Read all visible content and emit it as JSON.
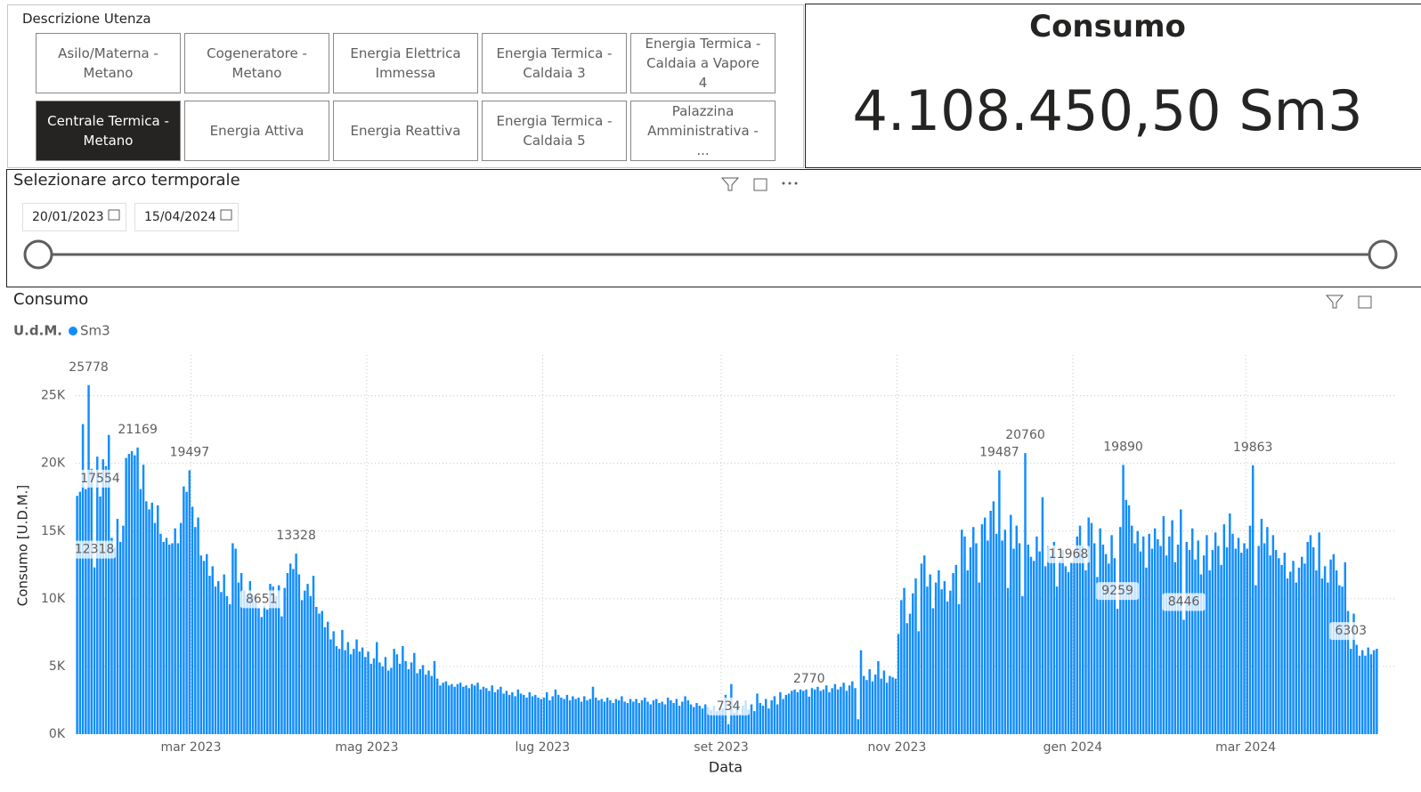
{
  "slicer": {
    "title": "Descrizione Utenza",
    "items": [
      {
        "label": "Asilo/Materna - Metano",
        "selected": false
      },
      {
        "label": "Cogeneratore - Metano",
        "selected": false
      },
      {
        "label": "Energia Elettrica Immessa",
        "selected": false
      },
      {
        "label": "Energia Termica - Caldaia 3",
        "selected": false
      },
      {
        "label": "Energia Termica - Caldaia a Vapore 4",
        "selected": false
      },
      {
        "label": "Centrale Termica - Metano",
        "selected": true
      },
      {
        "label": "Energia Attiva",
        "selected": false
      },
      {
        "label": "Energia Reattiva",
        "selected": false
      },
      {
        "label": "Energia Termica - Caldaia 5",
        "selected": false
      },
      {
        "label": "Palazzina Amministrativa - ...",
        "selected": false
      }
    ]
  },
  "card": {
    "title": "Consumo",
    "value": "4.108.450,50 Sm3"
  },
  "date_slicer": {
    "title": "Selezionare arco termporale",
    "from": "20/01/2023",
    "to": "15/04/2024"
  },
  "chart_data": {
    "type": "bar",
    "title": "Consumo",
    "legend_title": "U.d.M.",
    "xlabel": "Data",
    "ylabel": "Consumo [U.D.M.]",
    "grid": true,
    "xlim": [
      "2023-01-20",
      "2024-04-15"
    ],
    "xticks": [
      {
        "value": "2023-03-01",
        "label": "mar 2023"
      },
      {
        "value": "2023-05-01",
        "label": "mag 2023"
      },
      {
        "value": "2023-07-01",
        "label": "lug 2023"
      },
      {
        "value": "2023-09-01",
        "label": "set 2023"
      },
      {
        "value": "2023-11-01",
        "label": "nov 2023"
      },
      {
        "value": "2024-01-01",
        "label": "gen 2024"
      },
      {
        "value": "2024-03-01",
        "label": "mar 2024"
      }
    ],
    "ylim": [
      0,
      28000
    ],
    "yticks": [
      {
        "value": 0,
        "label": "0K"
      },
      {
        "value": 5000,
        "label": "5K"
      },
      {
        "value": 10000,
        "label": "10K"
      },
      {
        "value": 15000,
        "label": "15K"
      },
      {
        "value": 20000,
        "label": "20K"
      },
      {
        "value": 25000,
        "label": "25K"
      }
    ],
    "x": [
      "2023-01-20",
      "2023-01-21",
      "2023-01-22",
      "2023-01-23",
      "2023-01-24",
      "2023-01-25",
      "2023-01-26",
      "2023-01-27",
      "2023-01-28",
      "2023-01-29",
      "2023-01-30",
      "2023-01-31",
      "2023-02-01",
      "2023-02-02",
      "2023-02-03",
      "2023-02-04",
      "2023-02-05",
      "2023-02-06",
      "2023-02-07",
      "2023-02-08",
      "2023-02-09",
      "2023-02-10",
      "2023-02-11",
      "2023-02-12",
      "2023-02-13",
      "2023-02-14",
      "2023-02-15",
      "2023-02-16",
      "2023-02-17",
      "2023-02-18",
      "2023-02-19",
      "2023-02-20",
      "2023-02-21",
      "2023-02-22",
      "2023-02-23",
      "2023-02-24",
      "2023-02-25",
      "2023-02-26",
      "2023-02-27",
      "2023-02-28",
      "2023-03-01",
      "2023-03-02",
      "2023-03-03",
      "2023-03-04",
      "2023-03-05",
      "2023-03-06",
      "2023-03-07",
      "2023-03-08",
      "2023-03-09",
      "2023-03-10",
      "2023-03-11",
      "2023-03-12",
      "2023-03-13",
      "2023-03-14",
      "2023-03-15",
      "2023-03-16",
      "2023-03-17",
      "2023-03-18",
      "2023-03-19",
      "2023-03-20",
      "2023-03-21",
      "2023-03-22",
      "2023-03-23",
      "2023-03-24",
      "2023-03-25",
      "2023-03-26",
      "2023-03-27",
      "2023-03-28",
      "2023-03-29",
      "2023-03-30",
      "2023-03-31",
      "2023-04-01",
      "2023-04-02",
      "2023-04-03",
      "2023-04-04",
      "2023-04-05",
      "2023-04-06",
      "2023-04-07",
      "2023-04-08",
      "2023-04-09",
      "2023-04-10",
      "2023-04-11",
      "2023-04-12",
      "2023-04-13",
      "2023-04-14",
      "2023-04-15",
      "2023-04-16",
      "2023-04-17",
      "2023-04-18",
      "2023-04-19",
      "2023-04-20",
      "2023-04-21",
      "2023-04-22",
      "2023-04-23",
      "2023-04-24",
      "2023-04-25",
      "2023-04-26",
      "2023-04-27",
      "2023-04-28",
      "2023-04-29",
      "2023-04-30",
      "2023-05-01",
      "2023-05-02",
      "2023-05-03",
      "2023-05-04",
      "2023-05-05",
      "2023-05-06",
      "2023-05-07",
      "2023-05-08",
      "2023-05-09",
      "2023-05-10",
      "2023-05-11",
      "2023-05-12",
      "2023-05-13",
      "2023-05-14",
      "2023-05-15",
      "2023-05-16",
      "2023-05-17",
      "2023-05-18",
      "2023-05-19",
      "2023-05-20",
      "2023-05-21",
      "2023-05-22",
      "2023-05-23",
      "2023-05-24",
      "2023-05-25",
      "2023-05-26",
      "2023-05-27",
      "2023-05-28",
      "2023-05-29",
      "2023-05-30",
      "2023-05-31",
      "2023-06-01",
      "2023-06-02",
      "2023-06-03",
      "2023-06-04",
      "2023-06-05",
      "2023-06-06",
      "2023-06-07",
      "2023-06-08",
      "2023-06-09",
      "2023-06-10",
      "2023-06-11",
      "2023-06-12",
      "2023-06-13",
      "2023-06-14",
      "2023-06-15",
      "2023-06-16",
      "2023-06-17",
      "2023-06-18",
      "2023-06-19",
      "2023-06-20",
      "2023-06-21",
      "2023-06-22",
      "2023-06-23",
      "2023-06-24",
      "2023-06-25",
      "2023-06-26",
      "2023-06-27",
      "2023-06-28",
      "2023-06-29",
      "2023-06-30",
      "2023-07-01",
      "2023-07-02",
      "2023-07-03",
      "2023-07-04",
      "2023-07-05",
      "2023-07-06",
      "2023-07-07",
      "2023-07-08",
      "2023-07-09",
      "2023-07-10",
      "2023-07-11",
      "2023-07-12",
      "2023-07-13",
      "2023-07-14",
      "2023-07-15",
      "2023-07-16",
      "2023-07-17",
      "2023-07-18",
      "2023-07-19",
      "2023-07-20",
      "2023-07-21",
      "2023-07-22",
      "2023-07-23",
      "2023-07-24",
      "2023-07-25",
      "2023-07-26",
      "2023-07-27",
      "2023-07-28",
      "2023-07-29",
      "2023-07-30",
      "2023-07-31",
      "2023-08-01",
      "2023-08-02",
      "2023-08-03",
      "2023-08-04",
      "2023-08-05",
      "2023-08-06",
      "2023-08-07",
      "2023-08-08",
      "2023-08-09",
      "2023-08-10",
      "2023-08-11",
      "2023-08-12",
      "2023-08-13",
      "2023-08-14",
      "2023-08-15",
      "2023-08-16",
      "2023-08-17",
      "2023-08-18",
      "2023-08-19",
      "2023-08-20",
      "2023-08-21",
      "2023-08-22",
      "2023-08-23",
      "2023-08-24",
      "2023-08-25",
      "2023-08-26",
      "2023-08-27",
      "2023-08-28",
      "2023-08-29",
      "2023-08-30",
      "2023-08-31",
      "2023-09-01",
      "2023-09-02",
      "2023-09-03",
      "2023-09-04",
      "2023-09-05",
      "2023-09-06",
      "2023-09-07",
      "2023-09-08",
      "2023-09-09",
      "2023-09-10",
      "2023-09-11",
      "2023-09-12",
      "2023-09-13",
      "2023-09-14",
      "2023-09-15",
      "2023-09-16",
      "2023-09-17",
      "2023-09-18",
      "2023-09-19",
      "2023-09-20",
      "2023-09-21",
      "2023-09-22",
      "2023-09-23",
      "2023-09-24",
      "2023-09-25",
      "2023-09-26",
      "2023-09-27",
      "2023-09-28",
      "2023-09-29",
      "2023-09-30",
      "2023-10-01",
      "2023-10-02",
      "2023-10-03",
      "2023-10-04",
      "2023-10-05",
      "2023-10-06",
      "2023-10-07",
      "2023-10-08",
      "2023-10-09",
      "2023-10-10",
      "2023-10-11",
      "2023-10-12",
      "2023-10-13",
      "2023-10-14",
      "2023-10-15",
      "2023-10-16",
      "2023-10-17",
      "2023-10-18",
      "2023-10-19",
      "2023-10-20",
      "2023-10-21",
      "2023-10-22",
      "2023-10-23",
      "2023-10-24",
      "2023-10-25",
      "2023-10-26",
      "2023-10-27",
      "2023-10-28",
      "2023-10-29",
      "2023-10-30",
      "2023-10-31",
      "2023-11-01",
      "2023-11-02",
      "2023-11-03",
      "2023-11-04",
      "2023-11-05",
      "2023-11-06",
      "2023-11-07",
      "2023-11-08",
      "2023-11-09",
      "2023-11-10",
      "2023-11-11",
      "2023-11-12",
      "2023-11-13",
      "2023-11-14",
      "2023-11-15",
      "2023-11-16",
      "2023-11-17",
      "2023-11-18",
      "2023-11-19",
      "2023-11-20",
      "2023-11-21",
      "2023-11-22",
      "2023-11-23",
      "2023-11-24",
      "2023-11-25",
      "2023-11-26",
      "2023-11-27",
      "2023-11-28",
      "2023-11-29",
      "2023-11-30",
      "2023-12-01",
      "2023-12-02",
      "2023-12-03",
      "2023-12-04",
      "2023-12-05",
      "2023-12-06",
      "2023-12-07",
      "2023-12-08",
      "2023-12-09",
      "2023-12-10",
      "2023-12-11",
      "2023-12-12",
      "2023-12-13",
      "2023-12-14",
      "2023-12-15",
      "2023-12-16",
      "2023-12-17",
      "2023-12-18",
      "2023-12-19",
      "2023-12-20",
      "2023-12-21",
      "2023-12-22",
      "2023-12-23",
      "2023-12-24",
      "2023-12-25",
      "2023-12-26",
      "2023-12-27",
      "2023-12-28",
      "2023-12-29",
      "2023-12-30",
      "2023-12-31",
      "2024-01-01",
      "2024-01-02",
      "2024-01-03",
      "2024-01-04",
      "2024-01-05",
      "2024-01-06",
      "2024-01-07",
      "2024-01-08",
      "2024-01-09",
      "2024-01-10",
      "2024-01-11",
      "2024-01-12",
      "2024-01-13",
      "2024-01-14",
      "2024-01-15",
      "2024-01-16",
      "2024-01-17",
      "2024-01-18",
      "2024-01-19",
      "2024-01-20",
      "2024-01-21",
      "2024-01-22",
      "2024-01-23",
      "2024-01-24",
      "2024-01-25",
      "2024-01-26",
      "2024-01-27",
      "2024-01-28",
      "2024-01-29",
      "2024-01-30",
      "2024-01-31",
      "2024-02-01",
      "2024-02-02",
      "2024-02-03",
      "2024-02-04",
      "2024-02-05",
      "2024-02-06",
      "2024-02-07",
      "2024-02-08",
      "2024-02-09",
      "2024-02-10",
      "2024-02-11",
      "2024-02-12",
      "2024-02-13",
      "2024-02-14",
      "2024-02-15",
      "2024-02-16",
      "2024-02-17",
      "2024-02-18",
      "2024-02-19",
      "2024-02-20",
      "2024-02-21",
      "2024-02-22",
      "2024-02-23",
      "2024-02-24",
      "2024-02-25",
      "2024-02-26",
      "2024-02-27",
      "2024-02-28",
      "2024-02-29",
      "2024-03-01",
      "2024-03-02",
      "2024-03-03",
      "2024-03-04",
      "2024-03-05",
      "2024-03-06",
      "2024-03-07",
      "2024-03-08",
      "2024-03-09",
      "2024-03-10",
      "2024-03-11",
      "2024-03-12",
      "2024-03-13",
      "2024-03-14",
      "2024-03-15",
      "2024-03-16",
      "2024-03-17",
      "2024-03-18",
      "2024-03-19",
      "2024-03-20",
      "2024-03-21",
      "2024-03-22",
      "2024-03-23",
      "2024-03-24",
      "2024-03-25",
      "2024-03-26",
      "2024-03-27",
      "2024-03-28",
      "2024-03-29",
      "2024-03-30",
      "2024-03-31",
      "2024-04-01",
      "2024-04-02",
      "2024-04-03",
      "2024-04-04",
      "2024-04-05",
      "2024-04-06",
      "2024-04-07",
      "2024-04-08",
      "2024-04-09",
      "2024-04-10",
      "2024-04-11",
      "2024-04-12",
      "2024-04-13",
      "2024-04-14",
      "2024-04-15"
    ],
    "series": [
      {
        "name": "Sm3",
        "color": "#118dff",
        "values": [
          17600,
          17900,
          22900,
          18100,
          25778,
          19600,
          12318,
          20500,
          17554,
          20300,
          19800,
          22100,
          14500,
          13800,
          15900,
          14200,
          15400,
          20400,
          20700,
          20900,
          20600,
          21169,
          18100,
          19900,
          17200,
          16600,
          17100,
          15600,
          16900,
          14800,
          14200,
          14500,
          14000,
          14100,
          15200,
          14100,
          15600,
          18300,
          17900,
          19497,
          16800,
          15300,
          16000,
          13200,
          12800,
          13300,
          11700,
          12400,
          10900,
          11300,
          10500,
          11800,
          10200,
          9600,
          14100,
          13700,
          11200,
          11900,
          10600,
          10100,
          11300,
          10200,
          9800,
          9300,
          8651,
          9500,
          9200,
          11100,
          10900,
          10200,
          11000,
          8700,
          10800,
          11900,
          12600,
          12200,
          13328,
          11800,
          9900,
          10600,
          11100,
          10200,
          11700,
          9400,
          8900,
          9100,
          7900,
          8300,
          7000,
          7600,
          6500,
          6300,
          7700,
          6200,
          6800,
          5900,
          6300,
          7000,
          6100,
          6400,
          5700,
          6100,
          5200,
          5600,
          6800,
          5300,
          5000,
          5700,
          4700,
          4900,
          6300,
          5900,
          5200,
          6500,
          5400,
          4800,
          5300,
          6000,
          4500,
          4800,
          5100,
          4400,
          4700,
          4300,
          5400,
          4100,
          3600,
          3800,
          3900,
          3600,
          3700,
          3500,
          3700,
          3800,
          3500,
          3600,
          3400,
          3700,
          3600,
          3800,
          3300,
          3500,
          3400,
          3200,
          3600,
          3100,
          3300,
          3500,
          3000,
          3200,
          2900,
          3100,
          2800,
          3300,
          3000,
          2900,
          2700,
          3100,
          2800,
          2900,
          2700,
          2600,
          2700,
          3100,
          2500,
          2800,
          3300,
          2900,
          2700,
          2600,
          2900,
          2500,
          2800,
          2600,
          2700,
          2400,
          2800,
          2500,
          2600,
          3500,
          2700,
          2500,
          2600,
          2400,
          2700,
          2500,
          2300,
          2600,
          2500,
          2800,
          2400,
          2300,
          2600,
          2400,
          2600,
          2300,
          2500,
          2700,
          2400,
          2200,
          2500,
          2600,
          2300,
          2400,
          2200,
          2700,
          2500,
          2300,
          2600,
          2100,
          2400,
          2800,
          2500,
          2200,
          2000,
          2300,
          2100,
          1900,
          2200,
          2000,
          1800,
          2100,
          1700,
          2000,
          1900,
          2900,
          734,
          3700,
          1600,
          2300,
          1500,
          2100,
          2500,
          1800,
          2200,
          1700,
          3000,
          2300,
          2100,
          2600,
          1900,
          2500,
          2800,
          2200,
          3100,
          2600,
          2900,
          3000,
          3200,
          3300,
          3100,
          3300,
          3200,
          3300,
          2770,
          3400,
          3300,
          3500,
          3200,
          3300,
          3600,
          3100,
          3400,
          3700,
          3300,
          3500,
          3800,
          3200,
          3600,
          3900,
          3400,
          1100,
          6200,
          4300,
          4000,
          4800,
          3900,
          4400,
          5400,
          4100,
          4700,
          3800,
          4300,
          4200,
          4100,
          7400,
          9900,
          10800,
          8200,
          8900,
          10400,
          11500,
          7600,
          12600,
          13200,
          10900,
          11800,
          9300,
          11200,
          12100,
          10700,
          11300,
          9800,
          10600,
          11900,
          12500,
          9600,
          15100,
          14600,
          12100,
          13800,
          15300,
          14100,
          11200,
          15500,
          16000,
          14300,
          16500,
          17200,
          14800,
          19487,
          14300,
          15100,
          10800,
          16200,
          13700,
          15400,
          14100,
          10200,
          20760,
          14000,
          13100,
          12800,
          14600,
          13500,
          17500,
          12400,
          13900,
          13200,
          14200,
          10900,
          12800,
          13600,
          12400,
          11968,
          12700,
          13200,
          14600,
          15400,
          13900,
          12100,
          16000,
          15600,
          14100,
          11600,
          15200,
          14000,
          13300,
          12600,
          14700,
          13000,
          9259,
          15300,
          19890,
          17300,
          16900,
          15400,
          14100,
          15000,
          13500,
          14600,
          12300,
          14800,
          13700,
          15200,
          14400,
          13900,
          16100,
          13200,
          14600,
          15800,
          12700,
          14000,
          16600,
          8446,
          14200,
          13600,
          15200,
          12900,
          14300,
          11800,
          13200,
          14700,
          12100,
          13600,
          14900,
          13900,
          12500,
          15500,
          13800,
          16300,
          14800,
          13700,
          14500,
          13400,
          14100,
          13700,
          15400,
          19863,
          11000,
          13900,
          15900,
          14100,
          15300,
          13200,
          14700,
          13600,
          13000,
          12500,
          13400,
          11500,
          12000,
          12800,
          11200,
          12300,
          13100,
          12600,
          14200,
          14700,
          13800,
          12100,
          14900,
          11500,
          12400,
          11200,
          12900,
          13300,
          12100,
          11000,
          10900,
          12700,
          9100,
          6303,
          8900,
          6600,
          5800,
          6200,
          5800,
          6400,
          5900,
          6200,
          6300
        ]
      }
    ]
  }
}
